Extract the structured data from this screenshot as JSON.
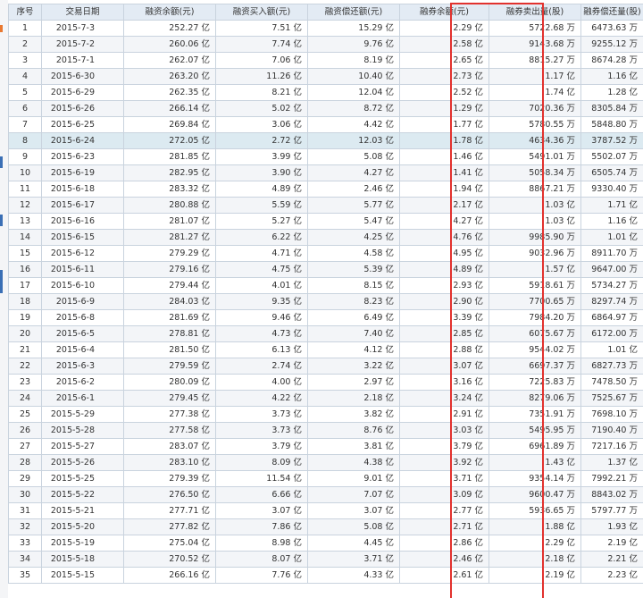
{
  "colors": {
    "header_bg": "#e3ebf4",
    "row_alt_bg": "#f3f5f8",
    "row_highlight_bg": "#dceaf1",
    "grid_line": "#c9d3de",
    "highlight_box": "#e2322e",
    "edge_marks": [
      "#e9782f",
      "#3a6fb5",
      "#3a6fb5",
      "#3a6fb5"
    ]
  },
  "table": {
    "headers": [
      "序号",
      "交易日期",
      "融资余额(元)",
      "融资买入额(元)",
      "融资偿还额(元)",
      "融券余额(元)",
      "融券卖出量(股)",
      "融券偿还量(股)"
    ],
    "highlighted_row": 8,
    "highlighted_column": "融券卖出量(股)",
    "rows": [
      [
        "1",
        "2015-7-3",
        "252.27 亿",
        "7.51 亿",
        "15.29 亿",
        "2.29 亿",
        "5722.68 万",
        "6473.63 万"
      ],
      [
        "2",
        "2015-7-2",
        "260.06 亿",
        "7.74 亿",
        "9.76 亿",
        "2.58 亿",
        "9143.68 万",
        "9255.12 万"
      ],
      [
        "3",
        "2015-7-1",
        "262.07 亿",
        "7.06 亿",
        "8.19 亿",
        "2.65 亿",
        "8815.27 万",
        "8674.28 万"
      ],
      [
        "4",
        "2015-6-30",
        "263.20 亿",
        "11.26 亿",
        "10.40 亿",
        "2.73 亿",
        "1.17 亿",
        "1.16 亿"
      ],
      [
        "5",
        "2015-6-29",
        "262.35 亿",
        "8.21 亿",
        "12.04 亿",
        "2.52 亿",
        "1.74 亿",
        "1.28 亿"
      ],
      [
        "6",
        "2015-6-26",
        "266.14 亿",
        "5.02 亿",
        "8.72 亿",
        "1.29 亿",
        "7020.36 万",
        "8305.84 万"
      ],
      [
        "7",
        "2015-6-25",
        "269.84 亿",
        "3.06 亿",
        "4.42 亿",
        "1.77 亿",
        "5780.55 万",
        "5848.80 万"
      ],
      [
        "8",
        "2015-6-24",
        "272.05 亿",
        "2.72 亿",
        "12.03 亿",
        "1.78 亿",
        "4634.36 万",
        "3787.52 万"
      ],
      [
        "9",
        "2015-6-23",
        "281.85 亿",
        "3.99 亿",
        "5.08 亿",
        "1.46 亿",
        "5491.01 万",
        "5502.07 万"
      ],
      [
        "10",
        "2015-6-19",
        "282.95 亿",
        "3.90 亿",
        "4.27 亿",
        "1.41 亿",
        "5058.34 万",
        "6505.74 万"
      ],
      [
        "11",
        "2015-6-18",
        "283.32 亿",
        "4.89 亿",
        "2.46 亿",
        "1.94 亿",
        "8867.21 万",
        "9330.40 万"
      ],
      [
        "12",
        "2015-6-17",
        "280.88 亿",
        "5.59 亿",
        "5.77 亿",
        "2.17 亿",
        "1.03 亿",
        "1.71 亿"
      ],
      [
        "13",
        "2015-6-16",
        "281.07 亿",
        "5.27 亿",
        "5.47 亿",
        "4.27 亿",
        "1.03 亿",
        "1.16 亿"
      ],
      [
        "14",
        "2015-6-15",
        "281.27 亿",
        "6.22 亿",
        "4.25 亿",
        "4.76 亿",
        "9985.90 万",
        "1.01 亿"
      ],
      [
        "15",
        "2015-6-12",
        "279.29 亿",
        "4.71 亿",
        "4.58 亿",
        "4.95 亿",
        "9032.96 万",
        "8911.70 万"
      ],
      [
        "16",
        "2015-6-11",
        "279.16 亿",
        "4.75 亿",
        "5.39 亿",
        "4.89 亿",
        "1.57 亿",
        "9647.00 万"
      ],
      [
        "17",
        "2015-6-10",
        "279.44 亿",
        "4.01 亿",
        "8.15 亿",
        "2.93 亿",
        "5918.61 万",
        "5734.27 万"
      ],
      [
        "18",
        "2015-6-9",
        "284.03 亿",
        "9.35 亿",
        "8.23 亿",
        "2.90 亿",
        "7700.65 万",
        "8297.74 万"
      ],
      [
        "19",
        "2015-6-8",
        "281.69 亿",
        "9.46 亿",
        "6.49 亿",
        "3.39 亿",
        "7984.20 万",
        "6864.97 万"
      ],
      [
        "20",
        "2015-6-5",
        "278.81 亿",
        "4.73 亿",
        "7.40 亿",
        "2.85 亿",
        "6075.67 万",
        "6172.00 万"
      ],
      [
        "21",
        "2015-6-4",
        "281.50 亿",
        "6.13 亿",
        "4.12 亿",
        "2.88 亿",
        "9544.02 万",
        "1.01 亿"
      ],
      [
        "22",
        "2015-6-3",
        "279.59 亿",
        "2.74 亿",
        "3.22 亿",
        "3.07 亿",
        "6697.37 万",
        "6827.73 万"
      ],
      [
        "23",
        "2015-6-2",
        "280.09 亿",
        "4.00 亿",
        "2.97 亿",
        "3.16 亿",
        "7225.83 万",
        "7478.50 万"
      ],
      [
        "24",
        "2015-6-1",
        "279.45 亿",
        "4.22 亿",
        "2.18 亿",
        "3.24 亿",
        "8279.06 万",
        "7525.67 万"
      ],
      [
        "25",
        "2015-5-29",
        "277.38 亿",
        "3.73 亿",
        "3.82 亿",
        "2.91 亿",
        "7351.91 万",
        "7698.10 万"
      ],
      [
        "26",
        "2015-5-28",
        "277.58 亿",
        "3.73 亿",
        "8.76 亿",
        "3.03 亿",
        "5495.95 万",
        "7190.40 万"
      ],
      [
        "27",
        "2015-5-27",
        "283.07 亿",
        "3.79 亿",
        "3.81 亿",
        "3.79 亿",
        "6961.89 万",
        "7217.16 万"
      ],
      [
        "28",
        "2015-5-26",
        "283.10 亿",
        "8.09 亿",
        "4.38 亿",
        "3.92 亿",
        "1.43 亿",
        "1.37 亿"
      ],
      [
        "29",
        "2015-5-25",
        "279.39 亿",
        "11.54 亿",
        "9.01 亿",
        "3.71 亿",
        "9354.14 万",
        "7992.21 万"
      ],
      [
        "30",
        "2015-5-22",
        "276.50 亿",
        "6.66 亿",
        "7.07 亿",
        "3.09 亿",
        "9600.47 万",
        "8843.02 万"
      ],
      [
        "31",
        "2015-5-21",
        "277.71 亿",
        "3.07 亿",
        "3.07 亿",
        "2.77 亿",
        "5936.65 万",
        "5797.77 万"
      ],
      [
        "32",
        "2015-5-20",
        "277.82 亿",
        "7.86 亿",
        "5.08 亿",
        "2.71 亿",
        "1.88 亿",
        "1.93 亿"
      ],
      [
        "33",
        "2015-5-19",
        "275.04 亿",
        "8.98 亿",
        "4.45 亿",
        "2.86 亿",
        "2.29 亿",
        "2.19 亿"
      ],
      [
        "34",
        "2015-5-18",
        "270.52 亿",
        "8.07 亿",
        "3.71 亿",
        "2.46 亿",
        "2.18 亿",
        "2.21 亿"
      ],
      [
        "35",
        "2015-5-15",
        "266.16 亿",
        "7.76 亿",
        "4.33 亿",
        "2.61 亿",
        "2.19 亿",
        "2.23 亿"
      ]
    ]
  }
}
